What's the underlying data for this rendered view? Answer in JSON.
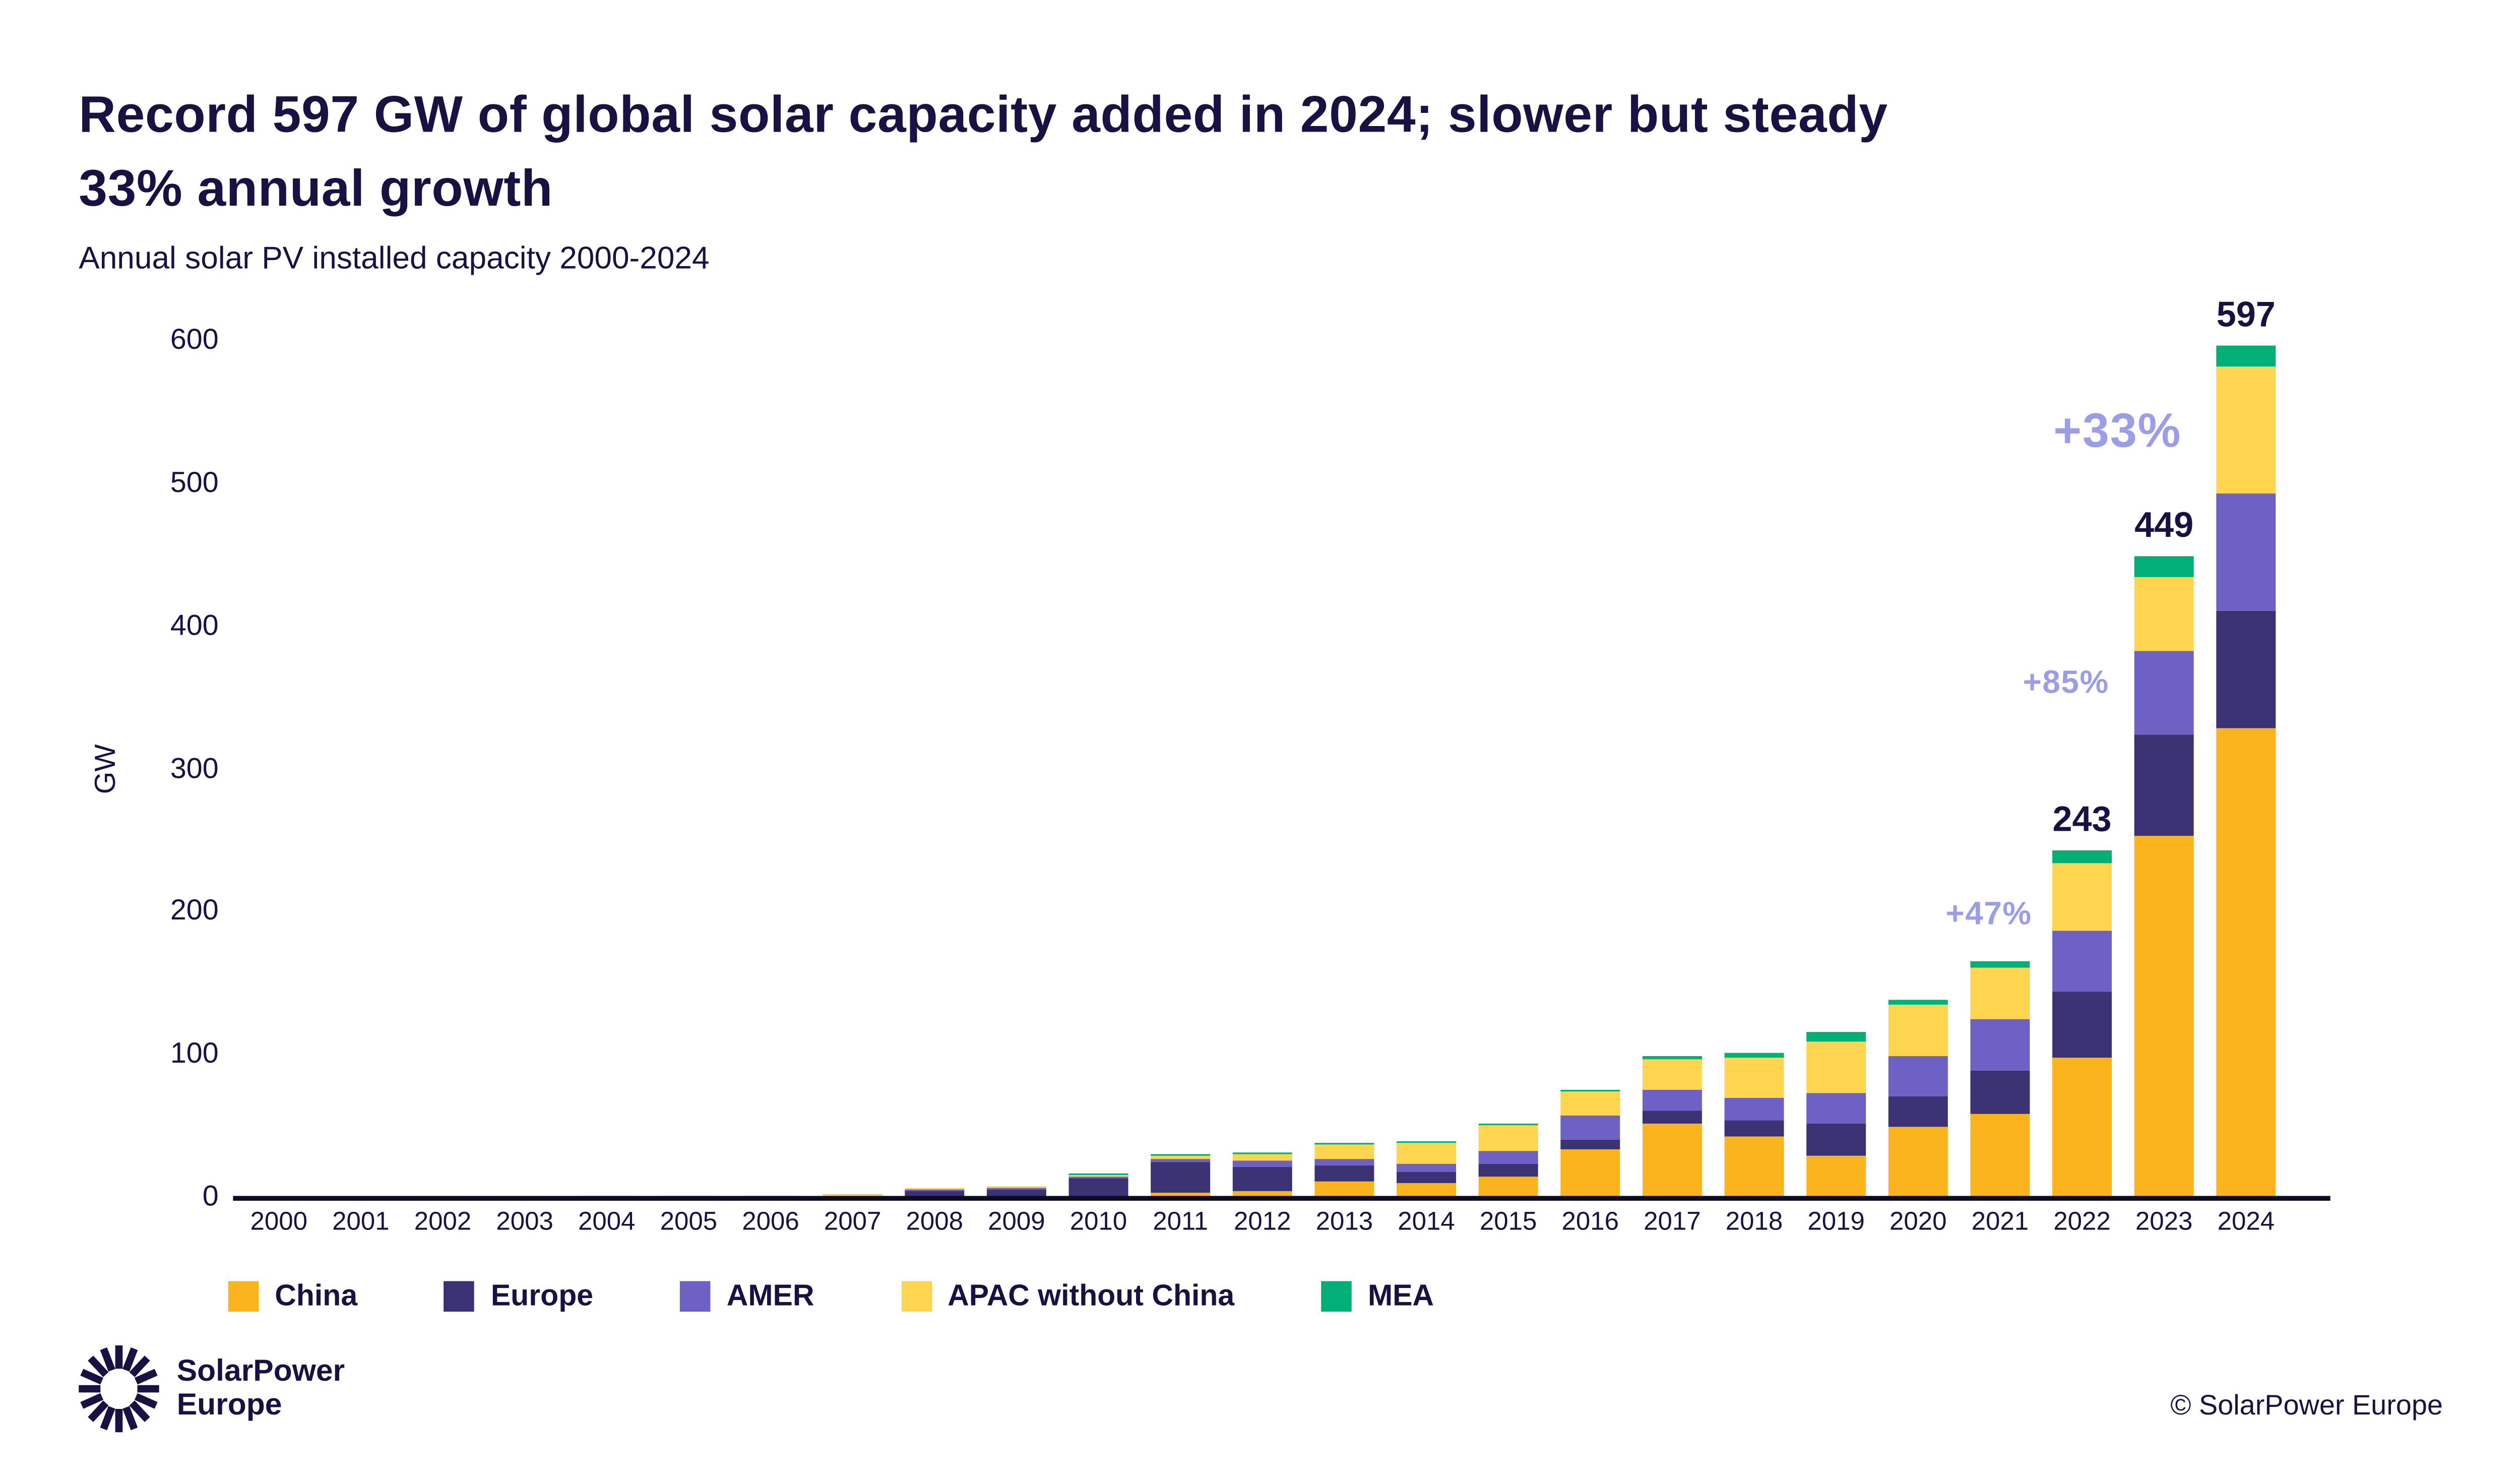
{
  "page": {
    "title_line1": "Record 597 GW of global solar capacity added in 2024; slower but steady",
    "title_line2": "33% annual growth",
    "subtitle": "Annual solar PV installed capacity 2000-2024"
  },
  "chart_data": {
    "type": "bar",
    "stacked": true,
    "title": "Record 597 GW of global solar capacity added in 2024; slower but steady 33% annual growth",
    "subtitle": "Annual solar PV installed capacity 2000-2024",
    "xlabel": "",
    "ylabel": "GW",
    "unit": "GW",
    "ylim": [
      0,
      600
    ],
    "yticks": [
      0,
      100,
      200,
      300,
      400,
      500,
      600
    ],
    "grid": false,
    "legend_position": "bottom",
    "categories": [
      2000,
      2001,
      2002,
      2003,
      2004,
      2005,
      2006,
      2007,
      2008,
      2009,
      2010,
      2011,
      2012,
      2013,
      2014,
      2015,
      2016,
      2017,
      2018,
      2019,
      2020,
      2021,
      2022,
      2023,
      2024
    ],
    "series": [
      {
        "name": "China",
        "color": "#FBB41B",
        "values": [
          0,
          0,
          0,
          0,
          0,
          0,
          0,
          0,
          0.1,
          0.2,
          0.5,
          3,
          4,
          11,
          10.5,
          15,
          34,
          52,
          43,
          29,
          49,
          58,
          98,
          253,
          329
        ]
      },
      {
        "name": "Europe",
        "color": "#3B3274",
        "values": [
          0.2,
          0.2,
          0.3,
          0.4,
          0.8,
          1.0,
          1.3,
          2.2,
          5.5,
          6,
          13.5,
          22,
          17.5,
          11,
          7,
          8.5,
          7,
          9,
          11,
          23,
          22,
          31,
          46,
          71,
          82
        ]
      },
      {
        "name": "AMER",
        "color": "#6D61C3",
        "values": [
          0.1,
          0.1,
          0.1,
          0.1,
          0.1,
          0.2,
          0.2,
          0.2,
          0.4,
          0.6,
          1.2,
          2.5,
          4,
          4.7,
          6.4,
          9,
          16,
          14,
          16,
          21,
          28,
          36,
          43,
          59,
          82
        ]
      },
      {
        "name": "APAC without China",
        "color": "#FFD44F",
        "values": [
          0.1,
          0.1,
          0.2,
          0.2,
          0.3,
          0.3,
          0.2,
          0.2,
          0.7,
          0.7,
          2,
          3,
          5.5,
          11,
          14.5,
          18,
          17,
          22,
          28,
          36,
          36,
          36,
          47,
          52,
          89
        ]
      },
      {
        "name": "MEA",
        "color": "#00B077",
        "values": [
          0,
          0,
          0,
          0,
          0,
          0,
          0,
          0,
          0,
          0,
          0.1,
          0.1,
          0.2,
          0.5,
          0.8,
          0.8,
          2,
          2,
          3,
          7,
          4,
          5,
          9,
          14,
          15
        ]
      }
    ],
    "annotations": [
      {
        "year": 2022,
        "total_label": "243",
        "growth_label": "+47%",
        "emphasis": false
      },
      {
        "year": 2023,
        "total_label": "449",
        "growth_label": "+85%",
        "emphasis": false
      },
      {
        "year": 2024,
        "total_label": "597",
        "growth_label": "+33%",
        "emphasis": true
      }
    ]
  },
  "footer": {
    "logo_line1": "SolarPower",
    "logo_line2": "Europe",
    "copyright": "© SolarPower Europe"
  },
  "colors": {
    "background": "#FFFFFF",
    "text": "#181142",
    "annotation": "#9B9DE6",
    "axis": "#0B0B22"
  }
}
